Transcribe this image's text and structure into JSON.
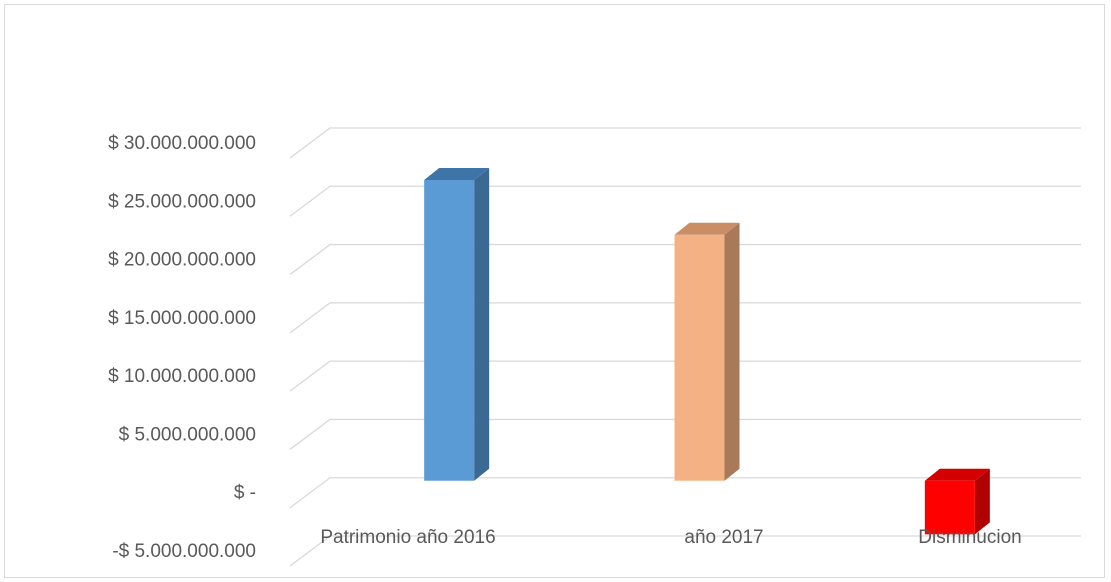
{
  "chart_data": {
    "type": "bar",
    "title": "",
    "xlabel": "",
    "ylabel": "",
    "categories": [
      "Patrimonio año 2016",
      "año 2017",
      "Disminucion"
    ],
    "values": [
      25800000000,
      21100000000,
      -4600000000
    ],
    "ylim": [
      -5000000000,
      30000000000
    ],
    "yticks": [
      30000000000,
      25000000000,
      20000000000,
      15000000000,
      10000000000,
      5000000000,
      0,
      -5000000000
    ],
    "ytick_labels": [
      "$ 30.000.000.000",
      "$ 25.000.000.000",
      "$ 20.000.000.000",
      "$ 15.000.000.000",
      "$ 10.000.000.000",
      "$ 5.000.000.000",
      "$ -",
      "-$ 5.000.000.000"
    ],
    "grid": true,
    "legend": "none",
    "style": "3d-column",
    "colors": {
      "bar_fronts": [
        "#5b9bd5",
        "#f4b183",
        "#ff0000"
      ],
      "bar_sides": [
        "#3a6a94",
        "#a97a59",
        "#b00000"
      ],
      "bar_tops": [
        "#3f74a8",
        "#c98e66",
        "#d40000"
      ],
      "gridline": "#d9d9d9",
      "text": "#595959"
    }
  }
}
